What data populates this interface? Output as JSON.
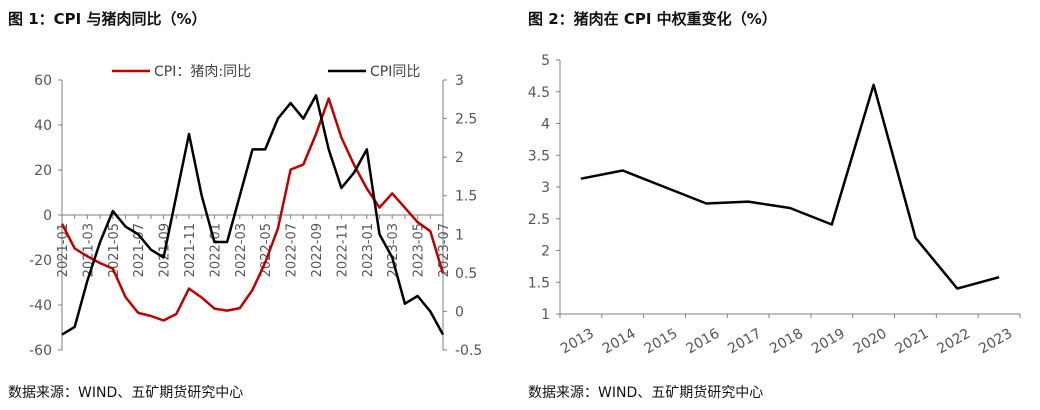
{
  "colors": {
    "pork": "#c00000",
    "cpi": "#000000",
    "axis": "#7f7f7f"
  },
  "chart_data": [
    {
      "type": "line",
      "title": "图 1：CPI 与猪肉同比（%）",
      "source": "数据来源：WIND、五矿期货研究中心",
      "legend_position": "top",
      "x": [
        "2021-01",
        "2021-02",
        "2021-03",
        "2021-04",
        "2021-05",
        "2021-06",
        "2021-07",
        "2021-08",
        "2021-09",
        "2021-10",
        "2021-11",
        "2021-12",
        "2022-01",
        "2022-02",
        "2022-03",
        "2022-04",
        "2022-05",
        "2022-06",
        "2022-07",
        "2022-08",
        "2022-09",
        "2022-10",
        "2022-11",
        "2022-12",
        "2023-01",
        "2023-02",
        "2023-03",
        "2023-04",
        "2023-05",
        "2023-06",
        "2023-07"
      ],
      "xtick_labels": [
        "2021-01",
        "2021-03",
        "2021-05",
        "2021-07",
        "2021-09",
        "2021-11",
        "2022-01",
        "2022-03",
        "2022-05",
        "2022-07",
        "2022-09",
        "2022-11",
        "2023-01",
        "2023-03",
        "2023-05",
        "2023-07"
      ],
      "series": [
        {
          "name": "CPI：猪肉:同比",
          "axis": "left",
          "color": "#c00000",
          "values": [
            -3.9,
            -14.9,
            -18.4,
            -21.4,
            -23.8,
            -36.5,
            -43.5,
            -44.9,
            -46.9,
            -44.0,
            -32.7,
            -36.7,
            -41.6,
            -42.5,
            -41.4,
            -33.3,
            -21.1,
            -6.0,
            20.2,
            22.4,
            36.0,
            51.8,
            34.4,
            22.2,
            11.8,
            3.3,
            9.6,
            3.2,
            -3.2,
            -7.2,
            -26.0
          ]
        },
        {
          "name": "CPI同比",
          "axis": "right",
          "color": "#000000",
          "values": [
            -0.3,
            -0.2,
            0.4,
            0.9,
            1.3,
            1.1,
            1.0,
            0.8,
            0.7,
            1.5,
            2.3,
            1.5,
            0.9,
            0.9,
            1.5,
            2.1,
            2.1,
            2.5,
            2.7,
            2.5,
            2.8,
            2.1,
            1.6,
            1.8,
            2.1,
            1.0,
            0.7,
            0.1,
            0.2,
            0.0,
            -0.3
          ]
        }
      ],
      "y_left": {
        "min": -60,
        "max": 60,
        "ticks": [
          -60,
          -40,
          -20,
          0,
          20,
          40,
          60
        ]
      },
      "y_right": {
        "min": -0.5,
        "max": 3,
        "ticks": [
          -0.5,
          0,
          0.5,
          1,
          1.5,
          2,
          2.5,
          3
        ]
      },
      "grid": false
    },
    {
      "type": "line",
      "title": "图 2：猪肉在 CPI 中权重变化（%）",
      "source": "数据来源：WIND、五矿期货研究中心",
      "x": [
        "2013",
        "2014",
        "2015",
        "2016",
        "2017",
        "2018",
        "2019",
        "2020",
        "2021",
        "2022",
        "2023"
      ],
      "series": [
        {
          "color": "#000000",
          "values": [
            3.13,
            3.26,
            3.0,
            2.74,
            2.77,
            2.67,
            2.41,
            4.61,
            2.2,
            1.4,
            1.58
          ]
        }
      ],
      "y": {
        "min": 1,
        "max": 5,
        "ticks": [
          1,
          1.5,
          2,
          2.5,
          3,
          3.5,
          4,
          4.5,
          5
        ]
      },
      "grid": false
    }
  ]
}
